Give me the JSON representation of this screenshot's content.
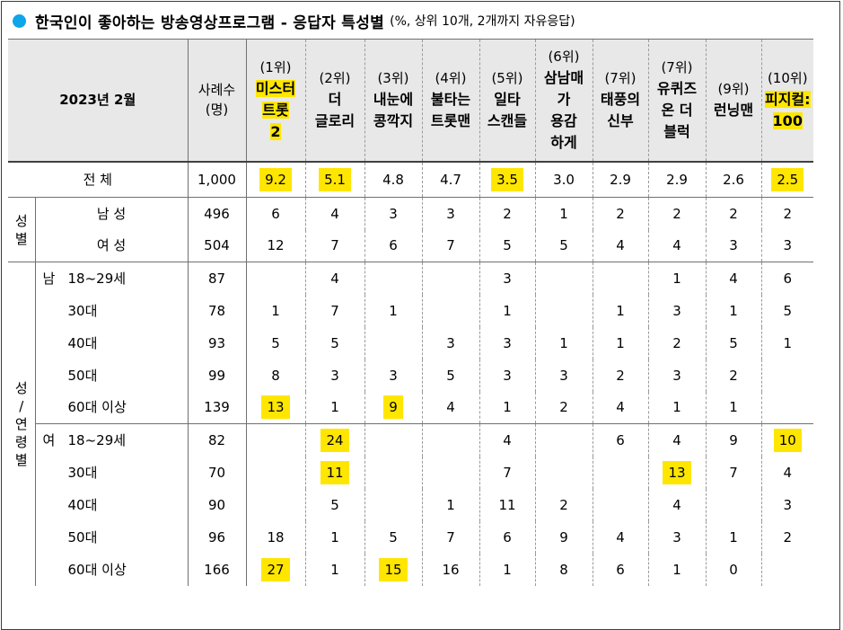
{
  "title": "한국인이 좋아하는 방송영상프로그램 - 응답자 특성별",
  "subtitle": "(%, 상위 10개, 2개까지 자유응답)",
  "header": {
    "date": "2023년 2월",
    "sample_label": "사례수\n(명)",
    "programs": [
      {
        "rank": "(1위)",
        "name": "미스터\n트롯\n2"
      },
      {
        "rank": "(2위)",
        "name": "더\n글로리"
      },
      {
        "rank": "(3위)",
        "name": "내눈에\n콩깍지"
      },
      {
        "rank": "(4위)",
        "name": "불타는\n트롯맨"
      },
      {
        "rank": "(5위)",
        "name": "일타\n스캔들"
      },
      {
        "rank": "(6위)",
        "name": "삼남매\n가\n용감\n하게"
      },
      {
        "rank": "(7위)",
        "name": "태풍의\n신부"
      },
      {
        "rank": "(7위)",
        "name": "유퀴즈\n온 더\n블럭"
      },
      {
        "rank": "(9위)",
        "name": "런닝맨"
      },
      {
        "rank": "(10위)",
        "name": "피지컬:\n100"
      }
    ]
  },
  "total_row": {
    "label": "전 체",
    "n": "1,000",
    "values": [
      "9.2",
      "5.1",
      "4.8",
      "4.7",
      "3.5",
      "3.0",
      "2.9",
      "2.9",
      "2.6",
      "2.5"
    ]
  },
  "gender_group": {
    "label": "성\n별",
    "rows": [
      {
        "label": "남 성",
        "n": "496",
        "values": [
          "6",
          "4",
          "3",
          "3",
          "2",
          "1",
          "2",
          "2",
          "2",
          "2"
        ]
      },
      {
        "label": "여 성",
        "n": "504",
        "values": [
          "12",
          "7",
          "6",
          "7",
          "5",
          "5",
          "4",
          "4",
          "3",
          "3"
        ]
      }
    ]
  },
  "age_group": {
    "label": "성\n/\n연\n령\n별",
    "male_label": "남",
    "female_label": "여",
    "male_rows": [
      {
        "label": "18~29세",
        "n": "87",
        "values": [
          "",
          "4",
          "",
          "",
          "3",
          "",
          "",
          "1",
          "4",
          "6"
        ]
      },
      {
        "label": "30대",
        "n": "78",
        "values": [
          "1",
          "7",
          "1",
          "",
          "1",
          "",
          "1",
          "3",
          "1",
          "5"
        ]
      },
      {
        "label": "40대",
        "n": "93",
        "values": [
          "5",
          "5",
          "",
          "3",
          "3",
          "1",
          "1",
          "2",
          "5",
          "1"
        ]
      },
      {
        "label": "50대",
        "n": "99",
        "values": [
          "8",
          "3",
          "3",
          "5",
          "3",
          "3",
          "2",
          "3",
          "2",
          ""
        ]
      },
      {
        "label": "60대 이상",
        "n": "139",
        "values": [
          "13",
          "1",
          "9",
          "4",
          "1",
          "2",
          "4",
          "1",
          "1",
          ""
        ]
      }
    ],
    "female_rows": [
      {
        "label": "18~29세",
        "n": "82",
        "values": [
          "",
          "24",
          "",
          "",
          "4",
          "",
          "6",
          "4",
          "9",
          "10"
        ]
      },
      {
        "label": "30대",
        "n": "70",
        "values": [
          "",
          "11",
          "",
          "",
          "7",
          "",
          "",
          "13",
          "7",
          "4"
        ]
      },
      {
        "label": "40대",
        "n": "90",
        "values": [
          "",
          "5",
          "",
          "1",
          "11",
          "2",
          "",
          "4",
          "",
          "3"
        ]
      },
      {
        "label": "50대",
        "n": "96",
        "values": [
          "18",
          "1",
          "5",
          "7",
          "6",
          "9",
          "4",
          "3",
          "1",
          "2"
        ]
      },
      {
        "label": "60대 이상",
        "n": "166",
        "values": [
          "27",
          "1",
          "15",
          "16",
          "1",
          "8",
          "6",
          "1",
          "0",
          ""
        ]
      }
    ]
  },
  "highlight_color": "#ffe600",
  "accent_dot_color": "#0ea5e9"
}
